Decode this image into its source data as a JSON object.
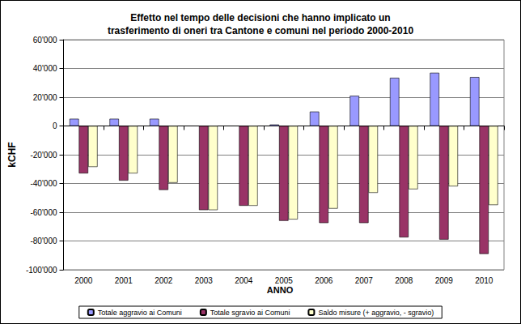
{
  "chart_data": {
    "type": "bar",
    "title": "Effetto nel tempo delle decisioni che hanno implicato un\ntrasferimento di oneri tra Cantone e comuni nel periodo 2000-2010",
    "x_label": "ANNO",
    "y_label": "kCHF",
    "categories": [
      "2000",
      "2001",
      "2002",
      "2003",
      "2004",
      "2005",
      "2006",
      "2007",
      "2008",
      "2009",
      "2010"
    ],
    "series": [
      {
        "name": "Totale aggravio ai Comuni",
        "color": "#9999ff",
        "values": [
          5000,
          5000,
          5000,
          0,
          0,
          1000,
          10000,
          21000,
          33500,
          37000,
          34000
        ]
      },
      {
        "name": "Totale sgravio ai Comuni",
        "color": "#993366",
        "values": [
          -33000,
          -38000,
          -44500,
          -58500,
          -55500,
          -66000,
          -67500,
          -67500,
          -77500,
          -79000,
          -89000
        ]
      },
      {
        "name": "Saldo misure (+ aggravio, - sgravio)",
        "color": "#ffffcc",
        "values": [
          -28500,
          -33000,
          -39500,
          -58500,
          -55500,
          -65000,
          -57500,
          -46500,
          -44000,
          -42000,
          -55000
        ]
      }
    ],
    "ylim": [
      -100000,
      60000
    ],
    "yticks": [
      {
        "value": -100000,
        "label": "-100'000"
      },
      {
        "value": -80000,
        "label": "-80'000"
      },
      {
        "value": -60000,
        "label": "-60'000"
      },
      {
        "value": -40000,
        "label": "-40'000"
      },
      {
        "value": -20000,
        "label": "-20'000"
      },
      0,
      {
        "value": 20000,
        "label": "20'000"
      },
      {
        "value": 40000,
        "label": "40'000"
      },
      {
        "value": 60000,
        "label": "60'000"
      }
    ],
    "grid": true,
    "legend": "bottom"
  }
}
